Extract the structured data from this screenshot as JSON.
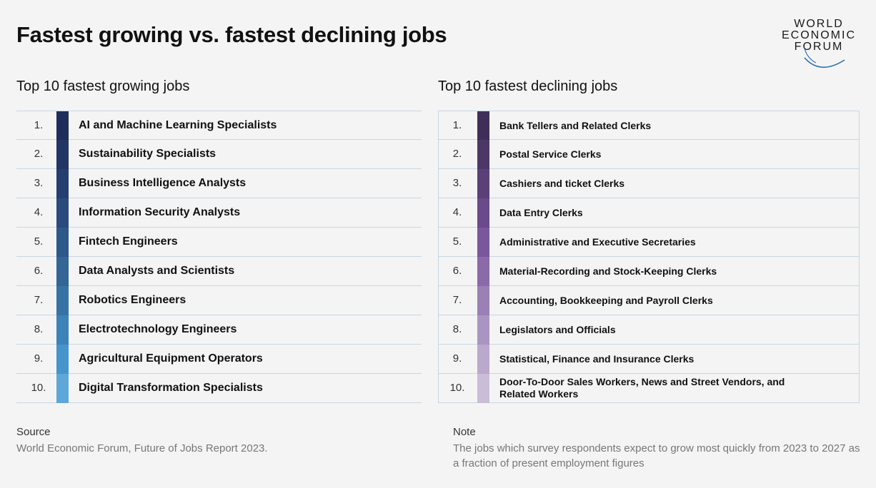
{
  "title": "Fastest growing vs. fastest declining jobs",
  "logo": {
    "line1": "WORLD",
    "line2": "ECONOMIC",
    "line3": "FORUM"
  },
  "growing": {
    "heading": "Top 10 fastest growing jobs",
    "items": [
      {
        "rank": "1.",
        "job": "AI and Machine Learning Specialists",
        "color": "#1e2d5a"
      },
      {
        "rank": "2.",
        "job": "Sustainability Specialists",
        "color": "#223565"
      },
      {
        "rank": "3.",
        "job": "Business Intelligence Analysts",
        "color": "#253e70"
      },
      {
        "rank": "4.",
        "job": "Information Security Analysts",
        "color": "#2a4a7d"
      },
      {
        "rank": "5.",
        "job": "Fintech Engineers",
        "color": "#2e578b"
      },
      {
        "rank": "6.",
        "job": "Data Analysts and Scientists",
        "color": "#336597"
      },
      {
        "rank": "7.",
        "job": "Robotics Engineers",
        "color": "#3873a6"
      },
      {
        "rank": "8.",
        "job": "Electrotechnology Engineers",
        "color": "#3d82b8"
      },
      {
        "rank": "9.",
        "job": "Agricultural Equipment Operators",
        "color": "#4694cc"
      },
      {
        "rank": "10.",
        "job": "Digital Transformation Specialists",
        "color": "#5ea7d9"
      }
    ]
  },
  "declining": {
    "heading": "Top 10 fastest declining jobs",
    "items": [
      {
        "rank": "1.",
        "job": "Bank Tellers and Related Clerks",
        "color": "#3f2f58"
      },
      {
        "rank": "2.",
        "job": "Postal Service Clerks",
        "color": "#4d3767"
      },
      {
        "rank": "3.",
        "job": "Cashiers and ticket Clerks",
        "color": "#5b4078"
      },
      {
        "rank": "4.",
        "job": "Data Entry Clerks",
        "color": "#6a4a8a"
      },
      {
        "rank": "5.",
        "job": "Administrative and Executive Secretaries",
        "color": "#7a579b"
      },
      {
        "rank": "6.",
        "job": "Material-Recording and Stock-Keeping Clerks",
        "color": "#8a6aa8"
      },
      {
        "rank": "7.",
        "job": "Accounting, Bookkeeping and Payroll Clerks",
        "color": "#9a80b5"
      },
      {
        "rank": "8.",
        "job": "Legislators and Officials",
        "color": "#aa95c2"
      },
      {
        "rank": "9.",
        "job": "Statistical, Finance and Insurance Clerks",
        "color": "#baa9cd"
      },
      {
        "rank": "10.",
        "job": "Door-To-Door Sales Workers, News and Street Vendors, and Related Workers",
        "color": "#c9bdd8"
      }
    ]
  },
  "source": {
    "label": "Source",
    "text": "World Economic Forum, Future of Jobs Report 2023."
  },
  "note": {
    "label": "Note",
    "text": "The jobs which survey respondents expect to grow most quickly from 2023 to 2027 as a fraction of present employment figures"
  }
}
